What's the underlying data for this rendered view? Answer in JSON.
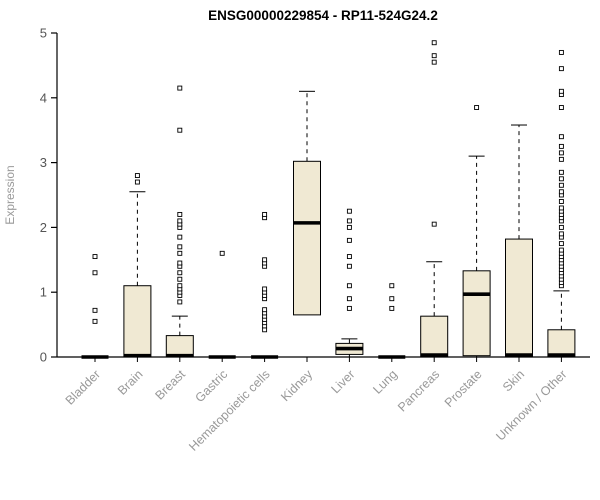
{
  "chart_data": {
    "type": "boxplot",
    "title": "ENSG00000229854 - RP11-524G24.2",
    "ylabel": "Expression",
    "xlabel": "",
    "ylim": [
      0,
      5
    ],
    "yticks": [
      0,
      1,
      2,
      3,
      4,
      5
    ],
    "grid": false,
    "legend": "none",
    "colors": {
      "box_fill": "#f0e9d3",
      "box_stroke": "#000000",
      "median": "#000000",
      "whisker": "#000000",
      "outlier_stroke": "#000000",
      "outlier_fill": "#ffffff",
      "axis": "#000000",
      "tick_label": "#555555",
      "category_label": "#999999"
    },
    "categories": [
      "Bladder",
      "Brain",
      "Breast",
      "Gastric",
      "Hematopoietic cells",
      "Kidney",
      "Liver",
      "Lung",
      "Pancreas",
      "Prostate",
      "Skin",
      "Unknown / Other"
    ],
    "boxes": [
      {
        "label": "Bladder",
        "q1": 0,
        "median": 0,
        "q3": 0,
        "whisker_low": 0,
        "whisker_high": 0,
        "outliers": [
          0.55,
          0.72,
          1.3,
          1.55
        ]
      },
      {
        "label": "Brain",
        "q1": 0,
        "median": 0.02,
        "q3": 1.1,
        "whisker_low": 0,
        "whisker_high": 2.55,
        "outliers": [
          2.7,
          2.8
        ]
      },
      {
        "label": "Breast",
        "q1": 0,
        "median": 0.02,
        "q3": 0.33,
        "whisker_low": 0,
        "whisker_high": 0.63,
        "outliers": [
          0.85,
          0.95,
          1.0,
          1.05,
          1.1,
          1.2,
          1.3,
          1.4,
          1.45,
          1.6,
          1.7,
          1.85,
          2.0,
          2.05,
          2.1,
          2.2,
          3.5,
          4.15
        ]
      },
      {
        "label": "Gastric",
        "q1": 0,
        "median": 0,
        "q3": 0,
        "whisker_low": 0,
        "whisker_high": 0,
        "outliers": [
          1.6
        ]
      },
      {
        "label": "Hematopoietic cells",
        "q1": 0,
        "median": 0,
        "q3": 0,
        "whisker_low": 0,
        "whisker_high": 0,
        "outliers": [
          0.42,
          0.48,
          0.53,
          0.58,
          0.63,
          0.68,
          0.73,
          0.9,
          0.95,
          1.0,
          1.05,
          1.4,
          1.45,
          1.5,
          2.15,
          2.2
        ]
      },
      {
        "label": "Kidney",
        "q1": 0.65,
        "median": 2.07,
        "q3": 3.02,
        "whisker_low": 0.65,
        "whisker_high": 4.1,
        "outliers": []
      },
      {
        "label": "Liver",
        "q1": 0.04,
        "median": 0.13,
        "q3": 0.21,
        "whisker_low": 0,
        "whisker_high": 0.28,
        "outliers": [
          0.75,
          0.9,
          1.1,
          1.4,
          1.55,
          1.8,
          2.0,
          2.1,
          2.25
        ]
      },
      {
        "label": "Lung",
        "q1": 0,
        "median": 0,
        "q3": 0,
        "whisker_low": 0,
        "whisker_high": 0,
        "outliers": [
          0.75,
          0.9,
          1.1
        ]
      },
      {
        "label": "Pancreas",
        "q1": 0,
        "median": 0.03,
        "q3": 0.63,
        "whisker_low": 0,
        "whisker_high": 1.47,
        "outliers": [
          2.05,
          4.55,
          4.65,
          4.85
        ]
      },
      {
        "label": "Prostate",
        "q1": 0.02,
        "median": 0.97,
        "q3": 1.33,
        "whisker_low": 0,
        "whisker_high": 3.1,
        "outliers": [
          3.85
        ]
      },
      {
        "label": "Skin",
        "q1": 0,
        "median": 0.03,
        "q3": 1.82,
        "whisker_low": 0,
        "whisker_high": 3.58,
        "outliers": []
      },
      {
        "label": "Unknown / Other",
        "q1": 0,
        "median": 0.03,
        "q3": 0.42,
        "whisker_low": 0,
        "whisker_high": 1.02,
        "outliers": [
          1.1,
          1.15,
          1.2,
          1.25,
          1.3,
          1.35,
          1.4,
          1.45,
          1.5,
          1.55,
          1.6,
          1.65,
          1.75,
          1.85,
          1.9,
          2.0,
          2.1,
          2.15,
          2.2,
          2.25,
          2.3,
          2.4,
          2.5,
          2.55,
          2.65,
          2.75,
          2.85,
          3.05,
          3.15,
          3.25,
          3.4,
          3.85,
          4.05,
          4.1,
          4.45,
          4.7
        ]
      }
    ]
  }
}
